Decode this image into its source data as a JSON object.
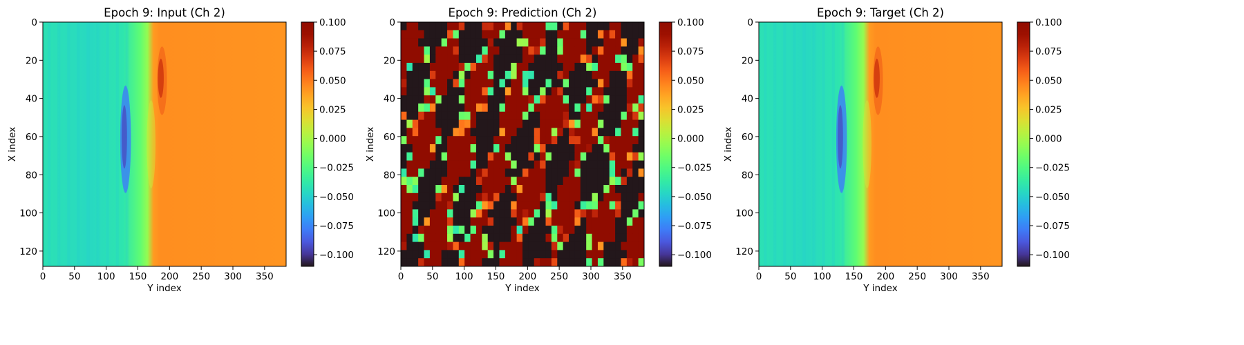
{
  "chart_data": [
    {
      "type": "heatmap",
      "title": "Epoch 9: Input (Ch 2)",
      "xlabel": "Y index",
      "ylabel": "X index",
      "xlim": [
        0,
        384
      ],
      "ylim": [
        128,
        0
      ],
      "xticks": [
        0,
        50,
        100,
        150,
        200,
        250,
        300,
        350
      ],
      "yticks": [
        0,
        20,
        40,
        60,
        80,
        100,
        120
      ],
      "colormap": "turbo",
      "vmin": -0.11,
      "vmax": 0.1,
      "colorbar_ticks": [
        "0.100",
        "0.075",
        "0.050",
        "0.025",
        "0.000",
        "−0.025",
        "−0.050",
        "−0.075",
        "−0.100"
      ],
      "field": "smooth"
    },
    {
      "type": "heatmap",
      "title": "Epoch 9: Prediction (Ch 2)",
      "xlabel": "Y index",
      "ylabel": "X index",
      "xlim": [
        0,
        384
      ],
      "ylim": [
        128,
        0
      ],
      "xticks": [
        0,
        50,
        100,
        150,
        200,
        250,
        300,
        350
      ],
      "yticks": [
        0,
        20,
        40,
        60,
        80,
        100,
        120
      ],
      "colormap": "turbo",
      "vmin": -0.11,
      "vmax": 0.1,
      "colorbar_ticks": [
        "0.100",
        "0.075",
        "0.050",
        "0.025",
        "0.000",
        "−0.025",
        "−0.050",
        "−0.075",
        "−0.100"
      ],
      "field": "noisy"
    },
    {
      "type": "heatmap",
      "title": "Epoch 9: Target (Ch 2)",
      "xlabel": "Y index",
      "ylabel": "X index",
      "xlim": [
        0,
        384
      ],
      "ylim": [
        128,
        0
      ],
      "xticks": [
        0,
        50,
        100,
        150,
        200,
        250,
        300,
        350
      ],
      "yticks": [
        0,
        20,
        40,
        60,
        80,
        100,
        120
      ],
      "colormap": "turbo",
      "vmin": -0.11,
      "vmax": 0.1,
      "colorbar_ticks": [
        "0.100",
        "0.075",
        "0.050",
        "0.025",
        "0.000",
        "−0.025",
        "−0.050",
        "−0.075",
        "−0.100"
      ],
      "field": "smooth"
    }
  ]
}
